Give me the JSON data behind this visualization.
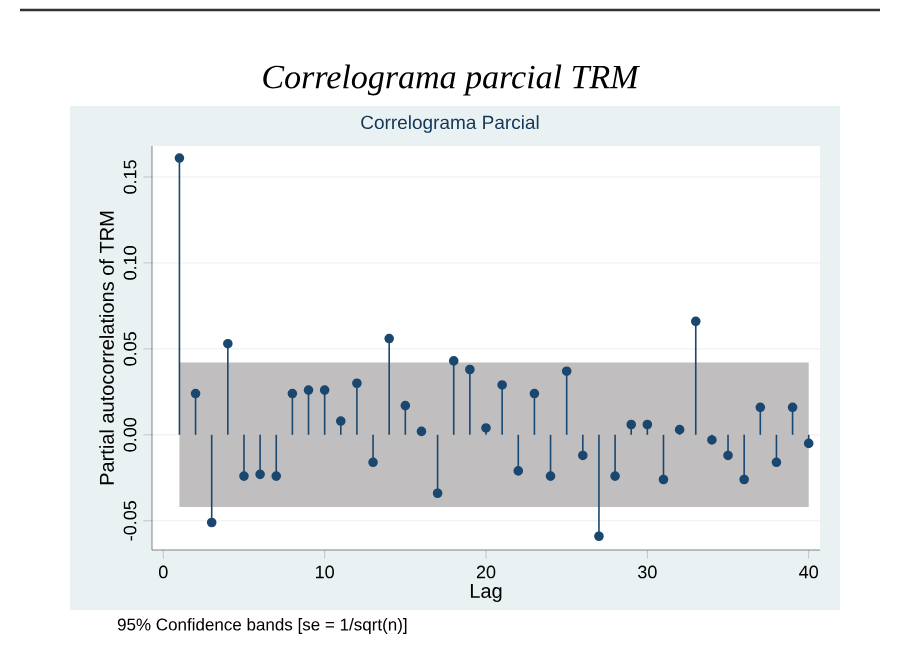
{
  "chart_data": {
    "type": "lollipop",
    "title": "Correlograma parcial TRM",
    "subtitle": "Correlograma Parcial",
    "xlabel": "Lag",
    "ylabel": "Partial autocorrelations of TRM",
    "x": [
      1,
      2,
      3,
      4,
      5,
      6,
      7,
      8,
      9,
      10,
      11,
      12,
      13,
      14,
      15,
      16,
      17,
      18,
      19,
      20,
      21,
      22,
      23,
      24,
      25,
      26,
      27,
      28,
      29,
      30,
      31,
      32,
      33,
      34,
      35,
      36,
      37,
      38,
      39,
      40
    ],
    "values": [
      0.161,
      0.024,
      -0.051,
      0.053,
      -0.024,
      -0.023,
      -0.024,
      0.024,
      0.026,
      0.026,
      0.008,
      0.03,
      -0.016,
      0.056,
      0.017,
      0.002,
      -0.034,
      0.043,
      0.038,
      0.004,
      0.029,
      -0.021,
      0.024,
      -0.024,
      0.037,
      -0.012,
      -0.059,
      -0.024,
      0.006,
      0.006,
      -0.026,
      0.003,
      0.066,
      -0.003,
      -0.012,
      -0.026,
      0.016,
      -0.016,
      0.016,
      -0.005
    ],
    "color": "#1a476f",
    "xlim": [
      -0.7,
      40.7
    ],
    "ylim": [
      -0.067,
      0.168
    ],
    "xticks": [
      0,
      10,
      20,
      30,
      40
    ],
    "yticks": [
      {
        "value": -0.05,
        "label": "-0.05"
      },
      {
        "value": 0,
        "label": "0.00"
      },
      {
        "value": 0.05,
        "label": "0.05"
      },
      {
        "value": 0.1,
        "label": "0.10"
      },
      {
        "value": 0.15,
        "label": "0.15"
      }
    ],
    "grid": "y",
    "marker": "circle",
    "bands": [
      {
        "axis": "y",
        "from": -0.042,
        "to": 0.042,
        "color": "#c0bebe"
      }
    ],
    "annotations": [
      "95% Confidence bands [se = 1/sqrt(n)]"
    ]
  }
}
